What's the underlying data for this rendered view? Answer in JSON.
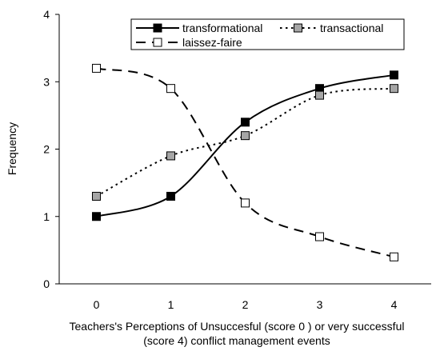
{
  "chart_data": {
    "type": "line",
    "x": [
      0,
      1,
      2,
      3,
      4
    ],
    "xlim": [
      -0.5,
      4.5
    ],
    "ylim": [
      0,
      4
    ],
    "yticks": [
      0,
      1,
      2,
      3,
      4
    ],
    "xticks": [
      0,
      1,
      2,
      3,
      4
    ],
    "ylabel": "Frequency",
    "xlabel": [
      "Teachers's Perceptions of Unsuccesful (score 0 ) or very successful",
      "(score 4) conflict management events"
    ],
    "grid": false,
    "legend_position": "top-right",
    "series": [
      {
        "name": "transformational",
        "values": [
          1.0,
          1.3,
          2.4,
          2.9,
          3.1
        ],
        "line": "solid",
        "marker_fill": "#000000"
      },
      {
        "name": "transactional",
        "values": [
          1.3,
          1.9,
          2.2,
          2.8,
          2.9
        ],
        "line": "dotted",
        "marker_fill": "#a6a6a6"
      },
      {
        "name": "laissez-faire",
        "values": [
          3.2,
          2.9,
          1.2,
          0.7,
          0.4
        ],
        "line": "dashed",
        "marker_fill": "#ffffff"
      }
    ]
  }
}
